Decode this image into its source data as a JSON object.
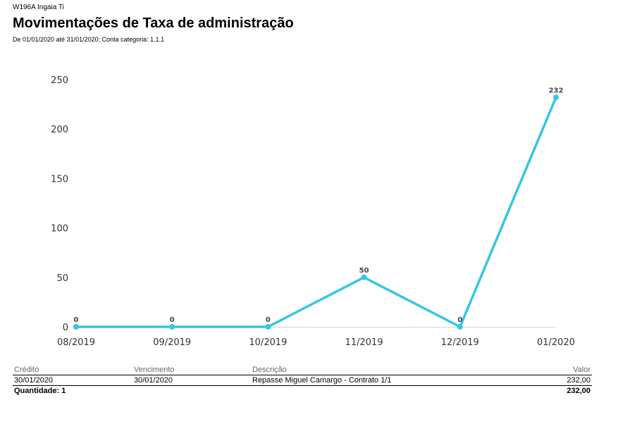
{
  "header": {
    "company": "W196A Ingaia Ti",
    "title": "Movimentações de Taxa de administração",
    "subtitle": "De 01/01/2020 até 31/01/2020; Conta categoria: 1.1.1"
  },
  "chart_data": {
    "type": "line",
    "categories": [
      "08/2019",
      "09/2019",
      "10/2019",
      "11/2019",
      "12/2019",
      "01/2020"
    ],
    "values": [
      0,
      0,
      0,
      50,
      0,
      232
    ],
    "data_labels": [
      "0",
      "0",
      "0",
      "50",
      "0",
      "232"
    ],
    "y_ticks": [
      0,
      50,
      100,
      150,
      200,
      250
    ],
    "ylim": [
      0,
      250
    ],
    "grid": false,
    "color": "#35c6e6"
  },
  "table": {
    "headers": {
      "credito": "Crédito",
      "vencimento": "Vencimento",
      "descricao": "Descrição",
      "valor": "Valor"
    },
    "rows": [
      {
        "credito": "30/01/2020",
        "vencimento": "30/01/2020",
        "descricao": "Repasse Miguel Camargo - Contrato 1/1",
        "valor": "232,00"
      }
    ],
    "footer": {
      "quantidade": "Quantidade: 1",
      "total": "232,00"
    }
  }
}
